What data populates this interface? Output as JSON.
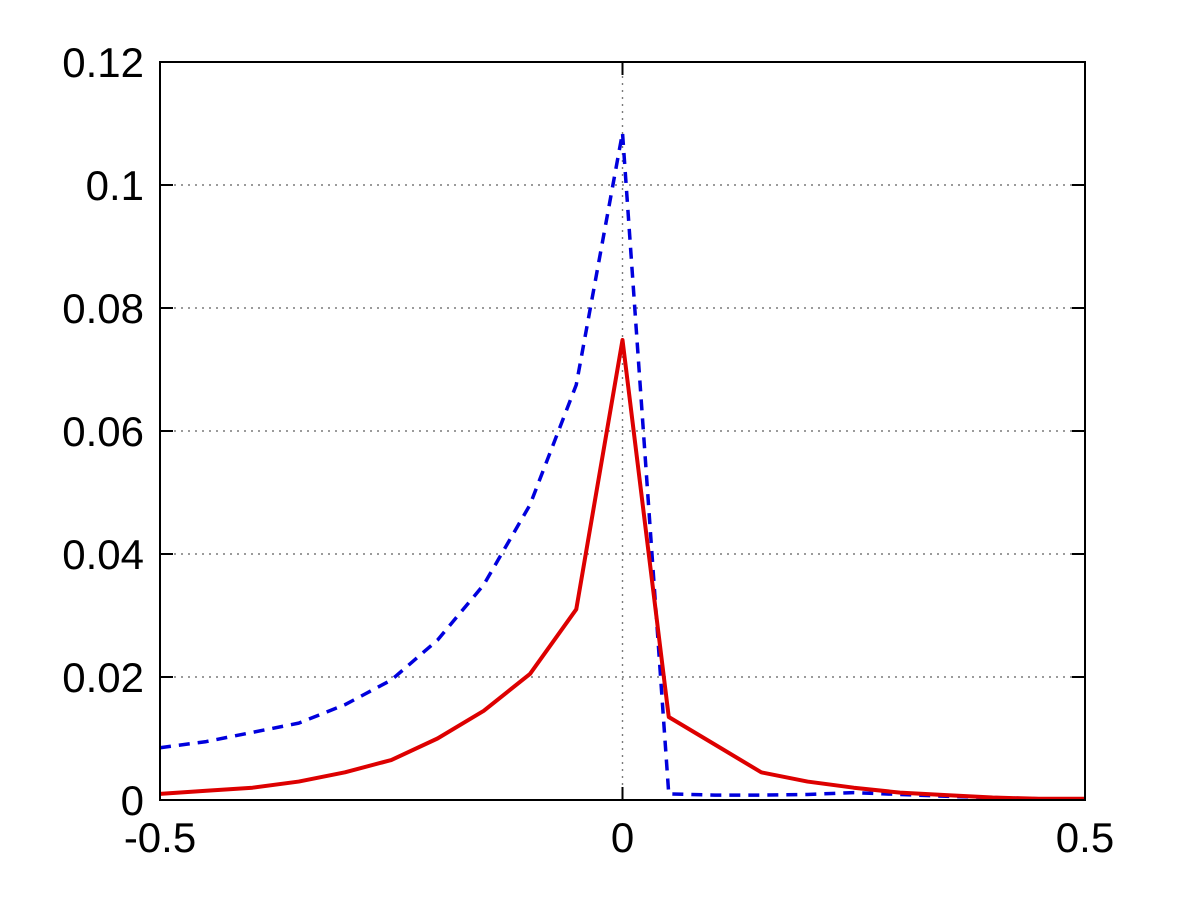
{
  "chart_data": {
    "type": "line",
    "title": "",
    "xlabel": "",
    "ylabel": "",
    "xlim": [
      -0.5,
      0.5
    ],
    "ylim": [
      0,
      0.12
    ],
    "xticks": [
      -0.5,
      0,
      0.5
    ],
    "xtick_labels": [
      "-0.5",
      "0",
      "0.5"
    ],
    "yticks": [
      0,
      0.02,
      0.04,
      0.06,
      0.08,
      0.1,
      0.12
    ],
    "ytick_labels": [
      "0",
      "0.02",
      "0.04",
      "0.06",
      "0.08",
      "0.1",
      "0.12"
    ],
    "grid": true,
    "legend": false,
    "background_color": "#ffffff",
    "axis_color": "#000000",
    "grid_color": "#7a7a7a",
    "tick_label_color": "#000000",
    "tick_label_size": 42,
    "x": [
      -0.5,
      -0.45,
      -0.4,
      -0.35,
      -0.3,
      -0.25,
      -0.2,
      -0.15,
      -0.1,
      -0.05,
      0,
      0.05,
      0.1,
      0.15,
      0.2,
      0.25,
      0.3,
      0.35,
      0.4,
      0.45,
      0.5
    ],
    "series": [
      {
        "name": "blue-dashed-curve",
        "color": "#0000dd",
        "style": "dashed",
        "line_width": 3.5,
        "peak": 0.1085,
        "values": [
          0.0085,
          0.0095,
          0.011,
          0.0125,
          0.0155,
          0.0195,
          0.026,
          0.035,
          0.048,
          0.0675,
          0.1085,
          0.001,
          0.0008,
          0.0008,
          0.0009,
          0.0012,
          0.0009,
          0.0006,
          0.0004,
          0.0002,
          0.0002
        ]
      },
      {
        "name": "red-solid-curve",
        "color": "#dd0000",
        "style": "solid",
        "line_width": 4,
        "peak": 0.0748,
        "values": [
          0.001,
          0.0015,
          0.002,
          0.003,
          0.0045,
          0.0065,
          0.01,
          0.0145,
          0.0205,
          0.031,
          0.0748,
          0.0135,
          0.009,
          0.0045,
          0.003,
          0.002,
          0.0012,
          0.0008,
          0.0004,
          0.0002,
          0.0002
        ]
      }
    ]
  }
}
